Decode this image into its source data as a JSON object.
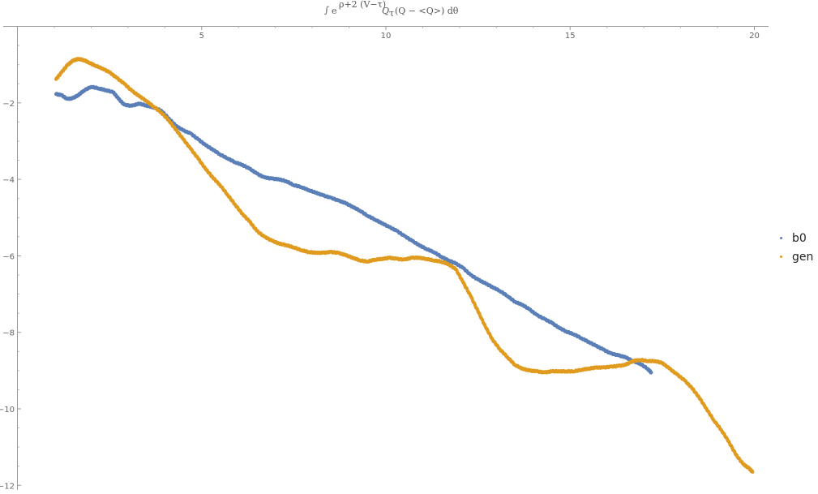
{
  "chart_data": {
    "type": "scatter",
    "title": "∫e^{ρ+2 (V−τ)} Q_τ (Q − <Q>) dθ",
    "title_parts": {
      "integral": "∫",
      "e": "e",
      "exponent": "ρ+2 (V−τ)",
      "q": "Q",
      "q_sub": "τ",
      "rest": "(Q − <Q>) dθ"
    },
    "xlabel": "",
    "ylabel": "",
    "xlim": [
      0,
      20.4
    ],
    "ylim": [
      -12.2,
      0
    ],
    "x_ticks": [
      5,
      10,
      15,
      20
    ],
    "y_ticks": [
      -2,
      -4,
      -6,
      -8,
      -10,
      -12
    ],
    "x_tick_labels": [
      "5",
      "10",
      "15",
      "20"
    ],
    "y_tick_labels": [
      "−2",
      "−4",
      "−6",
      "−8",
      "−10",
      "−12"
    ],
    "grid": false,
    "legend_position": "right",
    "series": [
      {
        "name": "b0",
        "color": "#5b7fb8",
        "points": [
          [
            1.05,
            -1.77
          ],
          [
            1.2,
            -1.8
          ],
          [
            1.35,
            -1.9
          ],
          [
            1.5,
            -1.88
          ],
          [
            1.65,
            -1.8
          ],
          [
            1.8,
            -1.68
          ],
          [
            2.0,
            -1.58
          ],
          [
            2.2,
            -1.62
          ],
          [
            2.4,
            -1.67
          ],
          [
            2.6,
            -1.72
          ],
          [
            2.75,
            -1.9
          ],
          [
            2.9,
            -2.05
          ],
          [
            3.1,
            -2.08
          ],
          [
            3.3,
            -2.02
          ],
          [
            3.5,
            -2.07
          ],
          [
            3.7,
            -2.12
          ],
          [
            3.9,
            -2.2
          ],
          [
            4.1,
            -2.4
          ],
          [
            4.3,
            -2.6
          ],
          [
            4.5,
            -2.72
          ],
          [
            4.7,
            -2.8
          ],
          [
            4.9,
            -2.95
          ],
          [
            5.1,
            -3.1
          ],
          [
            5.3,
            -3.22
          ],
          [
            5.5,
            -3.35
          ],
          [
            5.7,
            -3.45
          ],
          [
            5.9,
            -3.55
          ],
          [
            6.1,
            -3.62
          ],
          [
            6.3,
            -3.72
          ],
          [
            6.5,
            -3.85
          ],
          [
            6.7,
            -3.95
          ],
          [
            6.9,
            -3.98
          ],
          [
            7.1,
            -4.0
          ],
          [
            7.3,
            -4.05
          ],
          [
            7.5,
            -4.15
          ],
          [
            7.7,
            -4.2
          ],
          [
            7.9,
            -4.28
          ],
          [
            8.1,
            -4.35
          ],
          [
            8.3,
            -4.42
          ],
          [
            8.5,
            -4.48
          ],
          [
            8.7,
            -4.55
          ],
          [
            8.9,
            -4.62
          ],
          [
            9.1,
            -4.72
          ],
          [
            9.3,
            -4.82
          ],
          [
            9.5,
            -4.95
          ],
          [
            9.7,
            -5.05
          ],
          [
            9.9,
            -5.15
          ],
          [
            10.1,
            -5.25
          ],
          [
            10.3,
            -5.35
          ],
          [
            10.5,
            -5.48
          ],
          [
            10.7,
            -5.6
          ],
          [
            10.9,
            -5.72
          ],
          [
            11.1,
            -5.82
          ],
          [
            11.3,
            -5.9
          ],
          [
            11.5,
            -6.02
          ],
          [
            11.7,
            -6.12
          ],
          [
            11.9,
            -6.2
          ],
          [
            12.1,
            -6.32
          ],
          [
            12.3,
            -6.5
          ],
          [
            12.5,
            -6.62
          ],
          [
            12.7,
            -6.72
          ],
          [
            12.9,
            -6.82
          ],
          [
            13.1,
            -6.92
          ],
          [
            13.3,
            -7.05
          ],
          [
            13.5,
            -7.2
          ],
          [
            13.7,
            -7.28
          ],
          [
            13.9,
            -7.4
          ],
          [
            14.1,
            -7.55
          ],
          [
            14.3,
            -7.65
          ],
          [
            14.5,
            -7.75
          ],
          [
            14.7,
            -7.88
          ],
          [
            14.9,
            -7.98
          ],
          [
            15.1,
            -8.05
          ],
          [
            15.3,
            -8.15
          ],
          [
            15.5,
            -8.25
          ],
          [
            15.7,
            -8.35
          ],
          [
            15.9,
            -8.45
          ],
          [
            16.1,
            -8.55
          ],
          [
            16.3,
            -8.6
          ],
          [
            16.5,
            -8.65
          ],
          [
            16.7,
            -8.75
          ],
          [
            16.9,
            -8.82
          ],
          [
            17.1,
            -8.95
          ],
          [
            17.2,
            -9.05
          ]
        ]
      },
      {
        "name": "gen",
        "color": "#e09b1f",
        "points": [
          [
            1.05,
            -1.38
          ],
          [
            1.2,
            -1.2
          ],
          [
            1.35,
            -1.02
          ],
          [
            1.5,
            -0.9
          ],
          [
            1.65,
            -0.85
          ],
          [
            1.8,
            -0.88
          ],
          [
            1.95,
            -0.95
          ],
          [
            2.1,
            -1.02
          ],
          [
            2.3,
            -1.1
          ],
          [
            2.5,
            -1.2
          ],
          [
            2.7,
            -1.35
          ],
          [
            2.9,
            -1.5
          ],
          [
            3.1,
            -1.68
          ],
          [
            3.3,
            -1.82
          ],
          [
            3.5,
            -1.95
          ],
          [
            3.7,
            -2.1
          ],
          [
            3.9,
            -2.25
          ],
          [
            4.1,
            -2.45
          ],
          [
            4.3,
            -2.7
          ],
          [
            4.5,
            -2.95
          ],
          [
            4.7,
            -3.2
          ],
          [
            4.9,
            -3.45
          ],
          [
            5.1,
            -3.72
          ],
          [
            5.3,
            -3.95
          ],
          [
            5.5,
            -4.15
          ],
          [
            5.7,
            -4.4
          ],
          [
            5.9,
            -4.65
          ],
          [
            6.1,
            -4.9
          ],
          [
            6.3,
            -5.1
          ],
          [
            6.5,
            -5.35
          ],
          [
            6.7,
            -5.5
          ],
          [
            6.9,
            -5.6
          ],
          [
            7.1,
            -5.68
          ],
          [
            7.3,
            -5.72
          ],
          [
            7.5,
            -5.78
          ],
          [
            7.7,
            -5.85
          ],
          [
            7.9,
            -5.9
          ],
          [
            8.1,
            -5.92
          ],
          [
            8.3,
            -5.92
          ],
          [
            8.5,
            -5.9
          ],
          [
            8.7,
            -5.92
          ],
          [
            8.9,
            -5.98
          ],
          [
            9.1,
            -6.05
          ],
          [
            9.3,
            -6.12
          ],
          [
            9.5,
            -6.15
          ],
          [
            9.7,
            -6.1
          ],
          [
            9.9,
            -6.08
          ],
          [
            10.1,
            -6.05
          ],
          [
            10.3,
            -6.08
          ],
          [
            10.5,
            -6.1
          ],
          [
            10.7,
            -6.05
          ],
          [
            10.9,
            -6.05
          ],
          [
            11.1,
            -6.08
          ],
          [
            11.3,
            -6.12
          ],
          [
            11.5,
            -6.15
          ],
          [
            11.7,
            -6.22
          ],
          [
            11.9,
            -6.35
          ],
          [
            12.1,
            -6.7
          ],
          [
            12.3,
            -7.05
          ],
          [
            12.5,
            -7.45
          ],
          [
            12.7,
            -7.85
          ],
          [
            12.9,
            -8.2
          ],
          [
            13.1,
            -8.45
          ],
          [
            13.3,
            -8.65
          ],
          [
            13.5,
            -8.85
          ],
          [
            13.7,
            -8.95
          ],
          [
            13.9,
            -9.0
          ],
          [
            14.1,
            -9.02
          ],
          [
            14.3,
            -9.05
          ],
          [
            14.5,
            -9.02
          ],
          [
            14.7,
            -9.02
          ],
          [
            14.9,
            -9.02
          ],
          [
            15.1,
            -9.02
          ],
          [
            15.3,
            -8.98
          ],
          [
            15.5,
            -8.95
          ],
          [
            15.7,
            -8.92
          ],
          [
            15.9,
            -8.92
          ],
          [
            16.1,
            -8.9
          ],
          [
            16.3,
            -8.88
          ],
          [
            16.5,
            -8.85
          ],
          [
            16.7,
            -8.75
          ],
          [
            16.9,
            -8.72
          ],
          [
            17.1,
            -8.75
          ],
          [
            17.3,
            -8.75
          ],
          [
            17.5,
            -8.8
          ],
          [
            17.7,
            -8.95
          ],
          [
            17.9,
            -9.1
          ],
          [
            18.1,
            -9.25
          ],
          [
            18.3,
            -9.45
          ],
          [
            18.5,
            -9.7
          ],
          [
            18.7,
            -10.0
          ],
          [
            18.9,
            -10.3
          ],
          [
            19.1,
            -10.55
          ],
          [
            19.3,
            -10.85
          ],
          [
            19.5,
            -11.2
          ],
          [
            19.7,
            -11.45
          ],
          [
            19.85,
            -11.55
          ],
          [
            19.95,
            -11.65
          ]
        ]
      }
    ]
  }
}
